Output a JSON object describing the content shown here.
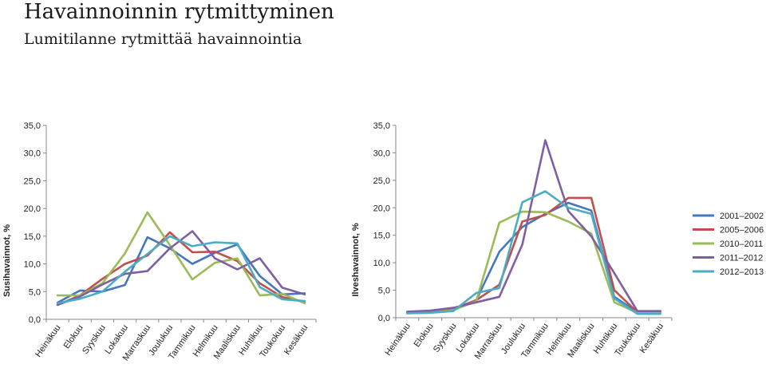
{
  "page": {
    "title": "Havainnoinnin rytmittyminen",
    "subtitle": "Lumitilanne rytmittää havainnointia"
  },
  "legend": {
    "entries": [
      {
        "label": "2001–2002",
        "color": "#4677BE"
      },
      {
        "label": "2005–2006",
        "color": "#C0504D"
      },
      {
        "label": "2010–2011",
        "color": "#9BBB59"
      },
      {
        "label": "2011–2012",
        "color": "#7F5FA3"
      },
      {
        "label": "2012–2013",
        "color": "#4BACC6"
      }
    ]
  },
  "chart_data": [
    {
      "type": "line",
      "title": "",
      "xlabel": "",
      "ylabel": "Susihavainnot, %",
      "ylim": [
        0,
        35
      ],
      "yticks": [
        "0,0",
        "5,0",
        "10,0",
        "15,0",
        "20,0",
        "25,0",
        "30,0",
        "35,0"
      ],
      "grid": false,
      "legend": "none",
      "categories": [
        "Heinäkuu",
        "Elokuu",
        "Syyskuu",
        "Lokakuu",
        "Marraskuu",
        "Joulukuu",
        "Tammikuu",
        "Helmikuu",
        "Maaliskuu",
        "Huhtikuu",
        "Toukokuu",
        "Kesäkuu"
      ],
      "series": [
        {
          "name": "2001–2002",
          "color": "#4677BE",
          "values": [
            3.0,
            5.2,
            5.0,
            6.2,
            14.8,
            12.8,
            10.0,
            12.0,
            13.5,
            7.8,
            4.5,
            4.7
          ]
        },
        {
          "name": "2005–2006",
          "color": "#C0504D",
          "values": [
            2.6,
            4.3,
            7.3,
            10.0,
            11.5,
            15.7,
            12.1,
            12.2,
            10.5,
            6.5,
            4.0,
            3.1
          ]
        },
        {
          "name": "2010–2011",
          "color": "#9BBB59",
          "values": [
            4.3,
            4.3,
            6.5,
            11.9,
            19.3,
            13.4,
            7.2,
            10.2,
            11.0,
            4.3,
            4.6,
            2.9
          ]
        },
        {
          "name": "2011–2012",
          "color": "#7F5FA3",
          "values": [
            2.6,
            4.1,
            6.3,
            8.2,
            8.7,
            12.8,
            15.9,
            11.0,
            9.0,
            11.0,
            5.7,
            4.5
          ]
        },
        {
          "name": "2012–2013",
          "color": "#4BACC6",
          "values": [
            2.9,
            3.7,
            5.0,
            8.6,
            11.8,
            15.0,
            13.2,
            13.9,
            13.7,
            5.8,
            3.6,
            3.3
          ]
        }
      ]
    },
    {
      "type": "line",
      "title": "",
      "xlabel": "",
      "ylabel": "Ilveshavainnot, %",
      "ylim": [
        0,
        35
      ],
      "yticks": [
        "0,0",
        "5,0",
        "10,0",
        "15,0",
        "20,0",
        "25,0",
        "30,0",
        "35,0"
      ],
      "grid": false,
      "legend": "right",
      "categories": [
        "Heinäkuu",
        "Elokuu",
        "Syyskuu",
        "Lokakuu",
        "Marraskuu",
        "Joulukuu",
        "Tammikuu",
        "Helmikuu",
        "Maaliskuu",
        "Huhtikuu",
        "Toukokuu",
        "Kesäkuu"
      ],
      "series": [
        {
          "name": "2001–2002",
          "color": "#4677BE",
          "values": [
            1.0,
            1.2,
            1.5,
            3.2,
            12.0,
            16.5,
            18.9,
            20.9,
            19.5,
            3.8,
            1.0,
            1.0
          ]
        },
        {
          "name": "2005–2006",
          "color": "#C0504D",
          "values": [
            1.0,
            1.2,
            1.6,
            3.2,
            6.0,
            17.5,
            18.7,
            21.8,
            21.8,
            5.0,
            1.0,
            1.2
          ]
        },
        {
          "name": "2010–2011",
          "color": "#9BBB59",
          "values": [
            0.8,
            0.9,
            1.4,
            3.0,
            17.3,
            19.3,
            19.2,
            17.5,
            15.3,
            2.8,
            0.9,
            0.9
          ]
        },
        {
          "name": "2011–2012",
          "color": "#7F5FA3",
          "values": [
            1.1,
            1.3,
            1.8,
            2.8,
            3.8,
            13.3,
            32.3,
            19.4,
            14.8,
            8.1,
            1.2,
            1.2
          ]
        },
        {
          "name": "2012–2013",
          "color": "#4BACC6",
          "values": [
            0.8,
            0.9,
            1.2,
            4.5,
            5.4,
            21.0,
            23.0,
            20.0,
            18.9,
            3.5,
            0.7,
            0.7
          ]
        }
      ]
    }
  ]
}
